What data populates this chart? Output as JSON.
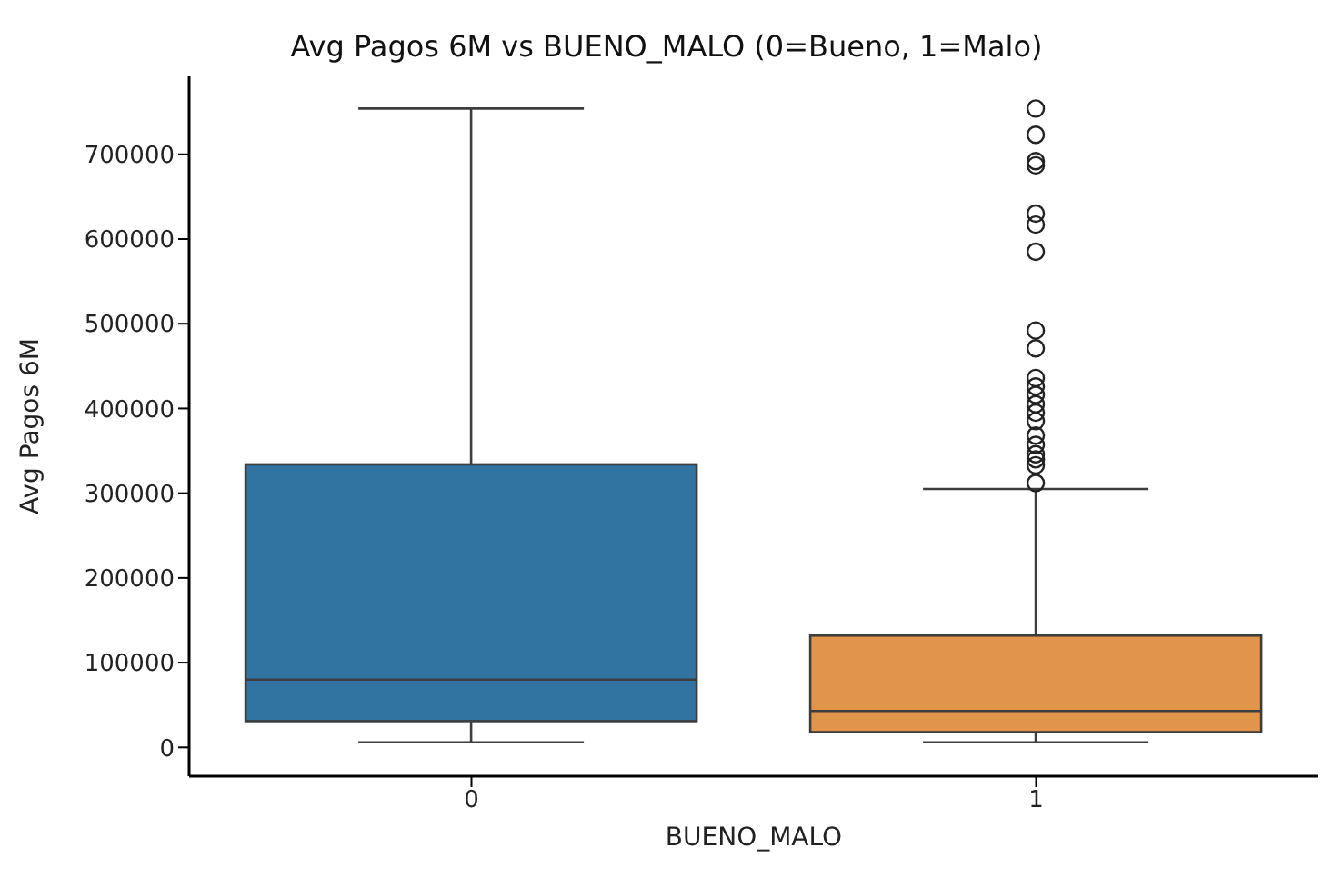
{
  "chart_data": {
    "type": "box",
    "title": "Avg Pagos 6M vs BUENO_MALO (0=Bueno, 1=Malo)",
    "xlabel": "BUENO_MALO",
    "ylabel": "Avg Pagos 6M",
    "categories": [
      "0",
      "1"
    ],
    "colors": [
      "#3274a1",
      "#e1954b"
    ],
    "boxes": [
      {
        "low": 6000,
        "q1": 31000,
        "median": 80000,
        "q3": 334000,
        "high": 754000
      },
      {
        "low": 6000,
        "q1": 18000,
        "median": 43000,
        "q3": 132000,
        "high": 305000,
        "outliers": [
          754000,
          723000,
          692000,
          687000,
          630000,
          617000,
          585000,
          492000,
          471000,
          436000,
          426000,
          416000,
          405000,
          395000,
          385000,
          368000,
          357000,
          346000,
          340000,
          333000,
          312000
        ]
      }
    ],
    "ylim": [
      -34000,
      792000
    ],
    "yticks": [
      0,
      100000,
      200000,
      300000,
      400000,
      500000,
      600000,
      700000
    ],
    "grid": false
  }
}
